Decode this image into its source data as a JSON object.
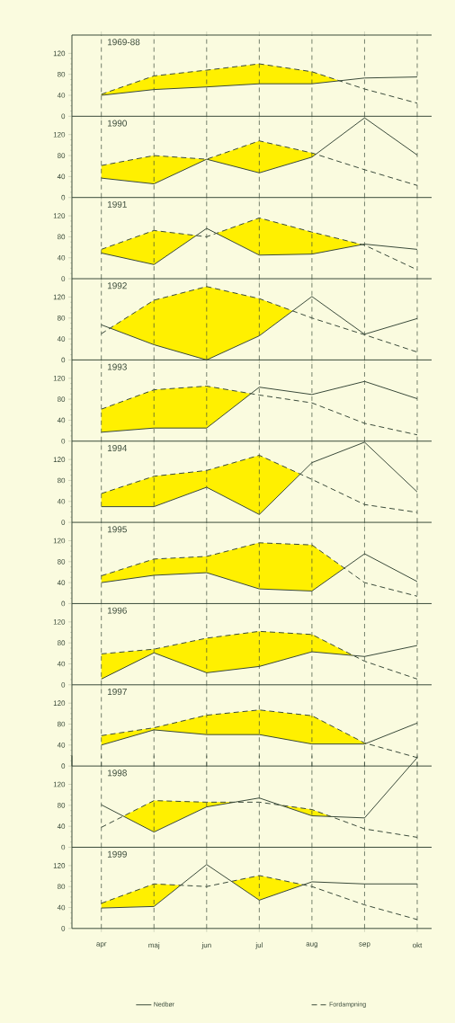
{
  "chart_data": [
    {
      "type": "line",
      "title": "1969-88",
      "categories": [
        null,
        null,
        null,
        null,
        null,
        null,
        null
      ],
      "ylim": [
        0,
        155
      ],
      "yticks": [
        0,
        40,
        80,
        120
      ],
      "grid": "x",
      "series": [
        {
          "color": "#3a4a3a",
          "line_style": "solid",
          "values": [
            40,
            51,
            56,
            62,
            62,
            73,
            75
          ]
        },
        {
          "color": "#3a4a3a",
          "line_style": "dashed",
          "values": [
            42,
            77,
            88,
            100,
            85,
            52,
            25
          ]
        }
      ]
    },
    {
      "type": "line",
      "title": "1990",
      "categories": [
        null,
        null,
        null,
        null,
        null,
        null,
        null
      ],
      "ylim": [
        0,
        155
      ],
      "yticks": [
        0,
        40,
        80,
        120
      ],
      "grid": "x",
      "series": [
        {
          "color": "#3a4a3a",
          "line_style": "solid",
          "values": [
            37,
            26,
            73,
            47,
            77,
            152,
            81
          ]
        },
        {
          "color": "#3a4a3a",
          "line_style": "dashed",
          "values": [
            61,
            80,
            73,
            108,
            85,
            53,
            23
          ]
        }
      ]
    },
    {
      "type": "line",
      "title": "1991",
      "categories": [
        null,
        null,
        null,
        null,
        null,
        null,
        null
      ],
      "ylim": [
        0,
        155
      ],
      "yticks": [
        0,
        40,
        80,
        120
      ],
      "grid": "x",
      "series": [
        {
          "color": "#3a4a3a",
          "line_style": "solid",
          "values": [
            49,
            27,
            96,
            45,
            47,
            66,
            56
          ]
        },
        {
          "color": "#3a4a3a",
          "line_style": "dashed",
          "values": [
            56,
            92,
            80,
            116,
            89,
            64,
            17
          ]
        }
      ]
    },
    {
      "type": "line",
      "title": "1992",
      "categories": [
        null,
        null,
        null,
        null,
        null,
        null,
        null
      ],
      "ylim": [
        0,
        155
      ],
      "yticks": [
        0,
        40,
        80,
        120
      ],
      "grid": "x",
      "series": [
        {
          "color": "#3a4a3a",
          "line_style": "solid",
          "values": [
            67,
            29,
            0,
            46,
            121,
            49,
            79
          ]
        },
        {
          "color": "#3a4a3a",
          "line_style": "dashed",
          "values": [
            50,
            114,
            140,
            117,
            80,
            48,
            15
          ]
        }
      ]
    },
    {
      "type": "line",
      "title": "1993",
      "categories": [
        null,
        null,
        null,
        null,
        null,
        null,
        null
      ],
      "ylim": [
        0,
        155
      ],
      "yticks": [
        0,
        40,
        80,
        120
      ],
      "grid": "x",
      "series": [
        {
          "color": "#3a4a3a",
          "line_style": "solid",
          "values": [
            17,
            25,
            25,
            103,
            89,
            114,
            81
          ]
        },
        {
          "color": "#3a4a3a",
          "line_style": "dashed",
          "values": [
            61,
            98,
            105,
            88,
            73,
            34,
            12
          ]
        }
      ]
    },
    {
      "type": "line",
      "title": "1994",
      "categories": [
        null,
        null,
        null,
        null,
        null,
        null,
        null
      ],
      "ylim": [
        0,
        155
      ],
      "yticks": [
        0,
        40,
        80,
        120
      ],
      "grid": "x",
      "series": [
        {
          "color": "#3a4a3a",
          "line_style": "solid",
          "values": [
            30,
            30,
            67,
            15,
            114,
            153,
            58
          ]
        },
        {
          "color": "#3a4a3a",
          "line_style": "dashed",
          "values": [
            55,
            88,
            99,
            128,
            82,
            34,
            19
          ]
        }
      ]
    },
    {
      "type": "line",
      "title": "1995",
      "categories": [
        null,
        null,
        null,
        null,
        null,
        null,
        null
      ],
      "ylim": [
        0,
        155
      ],
      "yticks": [
        0,
        40,
        80,
        120
      ],
      "grid": "x",
      "series": [
        {
          "color": "#3a4a3a",
          "line_style": "solid",
          "values": [
            40,
            54,
            59,
            28,
            24,
            95,
            42
          ]
        },
        {
          "color": "#3a4a3a",
          "line_style": "dashed",
          "values": [
            53,
            85,
            90,
            116,
            112,
            40,
            14
          ]
        }
      ]
    },
    {
      "type": "line",
      "title": "1996",
      "categories": [
        null,
        null,
        null,
        null,
        null,
        null,
        null
      ],
      "ylim": [
        0,
        155
      ],
      "yticks": [
        0,
        40,
        80,
        120
      ],
      "grid": "x",
      "series": [
        {
          "color": "#3a4a3a",
          "line_style": "solid",
          "values": [
            11,
            61,
            23,
            35,
            63,
            54,
            75
          ]
        },
        {
          "color": "#3a4a3a",
          "line_style": "dashed",
          "values": [
            59,
            68,
            89,
            102,
            96,
            45,
            11
          ]
        }
      ]
    },
    {
      "type": "line",
      "title": "1997",
      "categories": [
        null,
        null,
        null,
        null,
        null,
        null,
        null
      ],
      "ylim": [
        0,
        155
      ],
      "yticks": [
        0,
        40,
        80,
        120
      ],
      "grid": "x",
      "series": [
        {
          "color": "#3a4a3a",
          "line_style": "solid",
          "values": [
            40,
            69,
            60,
            60,
            42,
            42,
            82
          ]
        },
        {
          "color": "#3a4a3a",
          "line_style": "dashed",
          "values": [
            58,
            73,
            97,
            107,
            96,
            44,
            16
          ]
        }
      ]
    },
    {
      "type": "line",
      "title": "1998",
      "categories": [
        null,
        null,
        null,
        null,
        null,
        null,
        null
      ],
      "ylim": [
        0,
        175
      ],
      "yticks": [
        0,
        40,
        80,
        120
      ],
      "grid": "x",
      "series": [
        {
          "color": "#3a4a3a",
          "line_style": "solid",
          "values": [
            81,
            29,
            77,
            94,
            60,
            56,
            171
          ]
        },
        {
          "color": "#3a4a3a",
          "line_style": "dashed",
          "values": [
            38,
            89,
            86,
            86,
            72,
            35,
            19
          ]
        }
      ]
    },
    {
      "type": "line",
      "title": "1999",
      "categories": [
        "apr",
        "maj",
        "jun",
        "jul",
        "aug",
        "sep",
        "okt"
      ],
      "ylim": [
        0,
        155
      ],
      "yticks": [
        0,
        40,
        80,
        120
      ],
      "grid": "x",
      "legend": "bottom",
      "series": [
        {
          "name": "Nedbør",
          "color": "#3a4a3a",
          "line_style": "solid",
          "values": [
            39,
            42,
            122,
            54,
            89,
            85,
            85
          ]
        },
        {
          "name": "Fordampning",
          "color": "#3a4a3a",
          "line_style": "dashed",
          "values": [
            48,
            85,
            80,
            101,
            80,
            45,
            17
          ]
        }
      ]
    }
  ]
}
